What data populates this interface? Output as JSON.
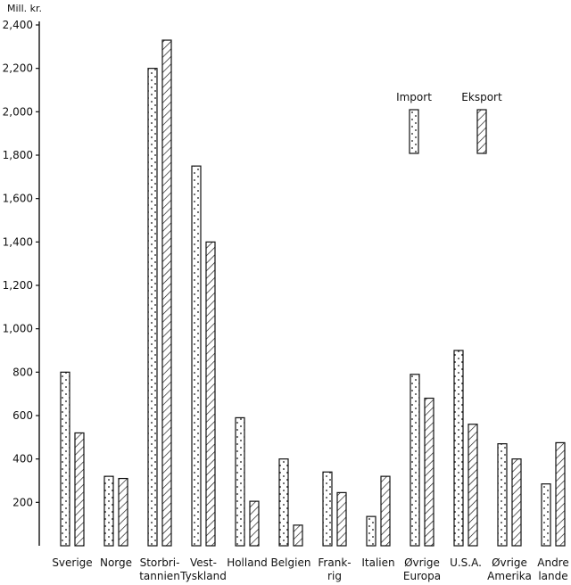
{
  "chart_data": {
    "type": "bar",
    "ylabel": "Mill. kr.",
    "ylim": [
      0,
      2400
    ],
    "yticks": [
      200,
      400,
      600,
      800,
      1000,
      1200,
      1400,
      1600,
      1800,
      2000,
      2200,
      2400
    ],
    "ytick_labels": [
      "200",
      "400",
      "600",
      "800",
      "1,000",
      "1,200",
      "1,400",
      "1,600",
      "1,800",
      "2,000",
      "2,200",
      "2,400"
    ],
    "categories": [
      [
        "Sverige"
      ],
      [
        "Norge"
      ],
      [
        "Storbri-",
        "tannien"
      ],
      [
        "Vest-",
        "Tyskland"
      ],
      [
        "Holland"
      ],
      [
        "Belgien"
      ],
      [
        "Frank-",
        "rig"
      ],
      [
        "Italien"
      ],
      [
        "Øvrige",
        "Europa"
      ],
      [
        "U.S.A."
      ],
      [
        "Øvrige",
        "Amerika"
      ],
      [
        "Andre",
        "lande"
      ]
    ],
    "series": [
      {
        "name": "Import",
        "pattern": "dots",
        "values": [
          800,
          320,
          2200,
          1750,
          590,
          400,
          340,
          135,
          790,
          900,
          470,
          285
        ]
      },
      {
        "name": "Eksport",
        "pattern": "hatch",
        "values": [
          520,
          310,
          2330,
          1400,
          205,
          95,
          245,
          320,
          680,
          560,
          400,
          475
        ]
      }
    ],
    "legend_position": "top-right",
    "grid": false
  }
}
